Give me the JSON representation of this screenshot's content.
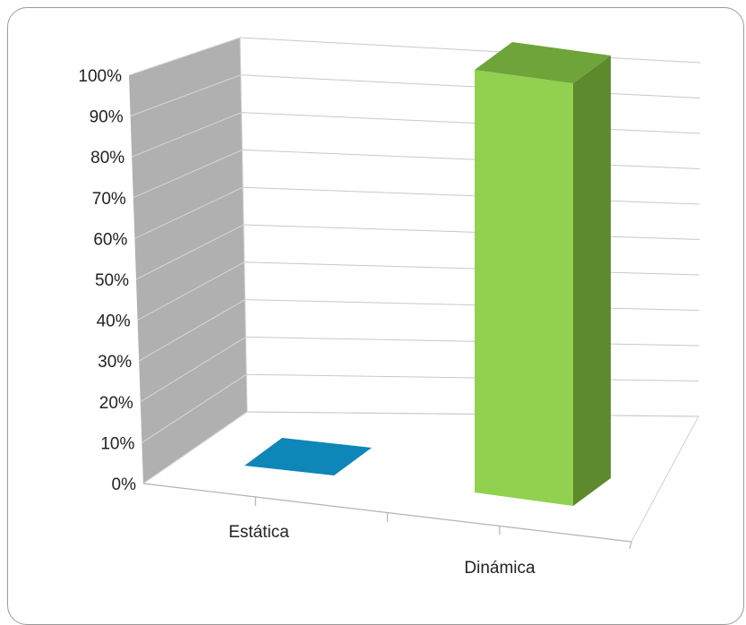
{
  "chart_data": {
    "type": "bar",
    "title": "",
    "xlabel": "",
    "ylabel": "",
    "categories": [
      "Estática",
      "Dinámica"
    ],
    "values": [
      0,
      100
    ],
    "y_ticks": [
      "0%",
      "10%",
      "20%",
      "30%",
      "40%",
      "50%",
      "60%",
      "70%",
      "80%",
      "90%",
      "100%"
    ],
    "ylim": [
      0,
      100
    ],
    "grid": true,
    "legend": "none",
    "three_d": true,
    "colors": {
      "bar_front": [
        "#0e86b8",
        "#92d050"
      ],
      "bar_side": [
        "#0b6f99",
        "#5e8a2e"
      ],
      "bar_top": [
        "#0e86b8",
        "#6ea43a"
      ],
      "back_wall": "#ffffff",
      "side_wall": "#b0b0b0",
      "grid": "#c8c8c8"
    }
  }
}
